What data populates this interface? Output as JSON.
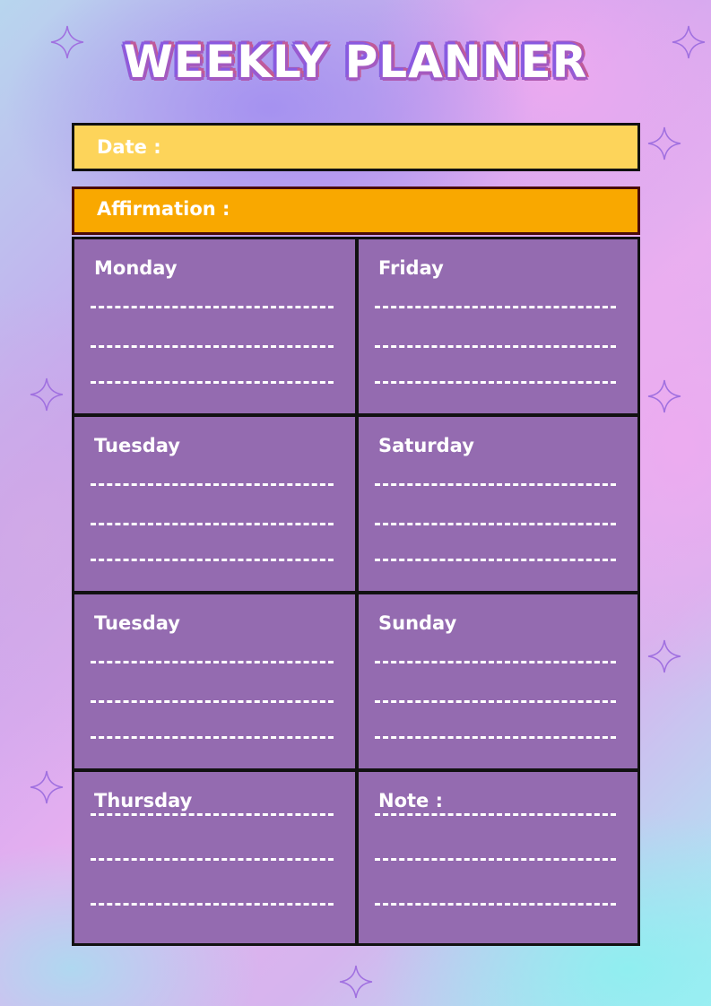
{
  "title": "WEEKLY PLANNER",
  "date_label": "Date :",
  "affirmation_label": "Affirmation :",
  "days": [
    {
      "label": "Monday"
    },
    {
      "label": "Friday"
    },
    {
      "label": "Tuesday"
    },
    {
      "label": "Saturday"
    },
    {
      "label": "Tuesday"
    },
    {
      "label": "Sunday"
    },
    {
      "label": "Thursday"
    },
    {
      "label": "Note :"
    }
  ],
  "colors": {
    "cell": "#946bb0",
    "date_bar": "#fdd45a",
    "affirmation_bar": "#f9a800",
    "border": "#111111"
  },
  "decorations": {
    "icon": "sparkle-star-icon"
  }
}
